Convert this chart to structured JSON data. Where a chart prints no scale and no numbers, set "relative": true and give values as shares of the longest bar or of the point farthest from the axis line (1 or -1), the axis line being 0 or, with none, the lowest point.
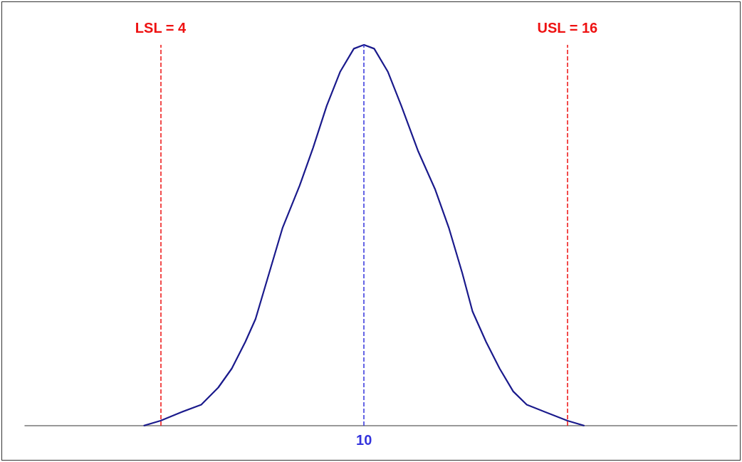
{
  "chart_data": {
    "type": "line",
    "relative": true,
    "x": [
      3.5,
      4,
      4.6,
      5.2,
      5.7,
      6.1,
      6.5,
      6.8,
      7.2,
      7.6,
      8.1,
      8.5,
      8.9,
      9.3,
      9.7,
      10,
      10.3,
      10.7,
      11.1,
      11.6,
      12.1,
      12.5,
      12.9,
      13.2,
      13.6,
      14,
      14.4,
      14.8,
      16,
      16.5
    ],
    "series": [
      {
        "color": "#1a1a8c",
        "values": [
          0,
          0.013,
          0.035,
          0.055,
          0.1,
          0.15,
          0.22,
          0.28,
          0.4,
          0.52,
          0.63,
          0.73,
          0.84,
          0.93,
          0.99,
          1,
          0.99,
          0.93,
          0.84,
          0.72,
          0.62,
          0.52,
          0.4,
          0.3,
          0.22,
          0.15,
          0.09,
          0.055,
          0.013,
          0
        ]
      }
    ],
    "xlim": [
      0,
      21
    ],
    "xticks": [
      {
        "value": 4,
        "label": "LSL = 4"
      },
      {
        "value": 16,
        "label": "USL = 16"
      }
    ],
    "ref_lines": [
      {
        "axis": "x",
        "value": 4,
        "label": null,
        "color": "#ee1111",
        "line_style": "dashed"
      },
      {
        "axis": "x",
        "value": 16,
        "label": null,
        "color": "#ee1111",
        "line_style": "dashed"
      },
      {
        "axis": "x",
        "value": 10,
        "label": "10",
        "color": "#3333dd",
        "line_style": "dashed"
      }
    ],
    "marker": "none"
  }
}
